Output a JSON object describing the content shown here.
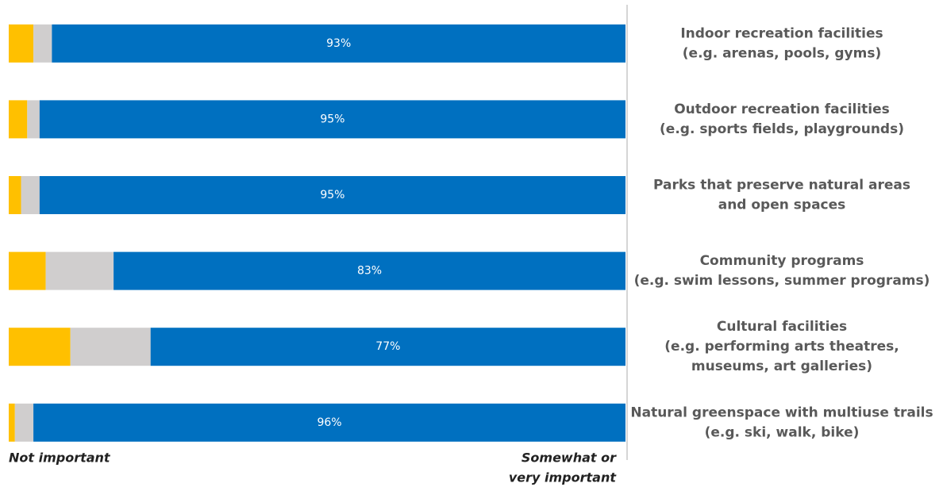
{
  "chart_data": {
    "type": "stacked-bar-horizontal",
    "categories": [
      [
        "Indoor recreation facilities",
        "(e.g. arenas, pools, gyms)"
      ],
      [
        "Outdoor recreation facilities",
        "(e.g. sports fields, playgrounds)"
      ],
      [
        "Parks that preserve natural areas",
        "and open spaces"
      ],
      [
        "Community programs",
        "(e.g. swim lessons, summer programs)"
      ],
      [
        "Cultural facilities",
        "(e.g. performing arts theatres,",
        "museums, art galleries)"
      ],
      [
        "Natural greenspace with multiuse trails",
        "(e.g. ski, walk, bike)"
      ]
    ],
    "series": [
      {
        "color": "#ffc000",
        "values": [
          4,
          3,
          2,
          6,
          10,
          1
        ]
      },
      {
        "color": "#d0cece",
        "values": [
          3,
          2,
          3,
          11,
          13,
          3
        ]
      },
      {
        "color": "#0070c0",
        "values": [
          93,
          95,
          95,
          83,
          77,
          96
        ],
        "value_labels": [
          "93%",
          "95%",
          "95%",
          "83%",
          "77%",
          "96%"
        ]
      }
    ],
    "xlim": [
      0,
      100
    ],
    "x_label_left": "Not important",
    "x_label_right": [
      "Somewhat or",
      "very important"
    ]
  }
}
